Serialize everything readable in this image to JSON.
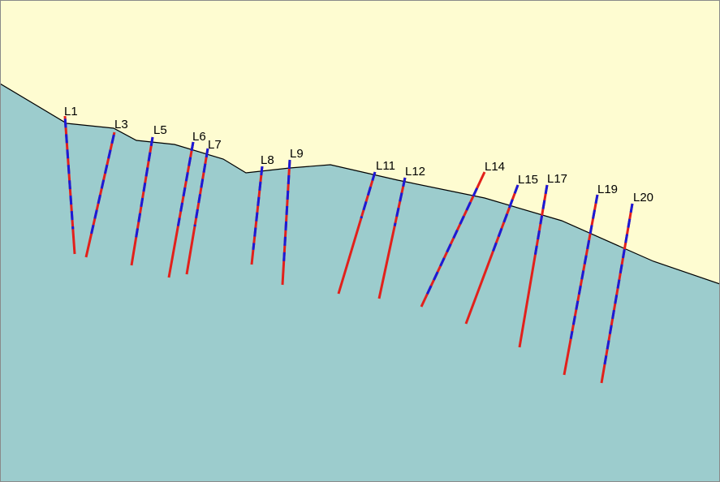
{
  "colors": {
    "sky": "#fefcd1",
    "ground": "#9ccccd",
    "ground_line": "#000000",
    "frame": "#8a8a8a",
    "line_primary": "#e2201b",
    "line_secondary": "#1a1ad6"
  },
  "legend": [],
  "lines": [
    {
      "label": "L1"
    },
    {
      "label": "L3"
    },
    {
      "label": "L5"
    },
    {
      "label": "L6"
    },
    {
      "label": "L7"
    },
    {
      "label": "L8"
    },
    {
      "label": "L9"
    },
    {
      "label": "L11"
    },
    {
      "label": "L12"
    },
    {
      "label": "L14"
    },
    {
      "label": "L15"
    },
    {
      "label": "L17"
    },
    {
      "label": "L19"
    },
    {
      "label": "L20"
    }
  ]
}
